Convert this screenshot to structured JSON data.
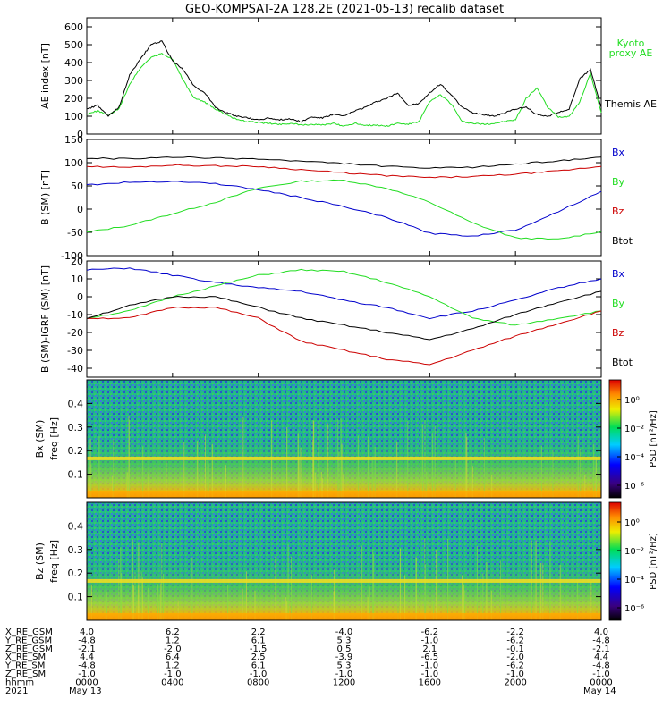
{
  "title": "GEO-KOMPSAT-2A 128.2E (2021-05-13) recalib dataset",
  "chart_data": [
    {
      "id": "ae",
      "type": "line",
      "ylabel": "AE index [nT]",
      "ylim": [
        0,
        650
      ],
      "yticks": [
        0,
        100,
        200,
        300,
        400,
        500,
        600
      ],
      "series": [
        {
          "name": "Kyoto proxy AE",
          "color": "#22dd22",
          "x": [
            0,
            0.5,
            1,
            1.5,
            2,
            2.5,
            3,
            3.5,
            4,
            4.5,
            5,
            5.5,
            6,
            6.5,
            7,
            7.5,
            8,
            8.5,
            9,
            9.5,
            10,
            10.5,
            11,
            11.5,
            12,
            12.5,
            13,
            13.5,
            14,
            14.5,
            15,
            15.5,
            16,
            16.5,
            17,
            17.5,
            18,
            18.5,
            19,
            19.5,
            20,
            20.5,
            21,
            21.5,
            22,
            22.5,
            23,
            23.5,
            24
          ],
          "values": [
            110,
            130,
            105,
            140,
            280,
            370,
            430,
            450,
            420,
            300,
            200,
            180,
            140,
            110,
            80,
            70,
            65,
            60,
            55,
            60,
            50,
            55,
            50,
            60,
            45,
            60,
            50,
            50,
            45,
            60,
            55,
            70,
            180,
            220,
            170,
            70,
            60,
            55,
            60,
            70,
            80,
            200,
            260,
            150,
            95,
            100,
            180,
            340,
            120
          ]
        },
        {
          "name": "Themis AE",
          "color": "#000000",
          "x": [
            0,
            0.5,
            1,
            1.5,
            2,
            2.5,
            3,
            3.5,
            4,
            4.5,
            5,
            5.5,
            6,
            6.5,
            7,
            7.5,
            8,
            8.5,
            9,
            9.5,
            10,
            10.5,
            11,
            11.5,
            12,
            12.5,
            13,
            13.5,
            14,
            14.5,
            15,
            15.5,
            16,
            16.5,
            17,
            17.5,
            18,
            18.5,
            19,
            19.5,
            20,
            20.5,
            21,
            21.5,
            22,
            22.5,
            23,
            23.5,
            24
          ],
          "values": [
            140,
            160,
            100,
            150,
            330,
            420,
            500,
            520,
            410,
            360,
            270,
            230,
            150,
            120,
            100,
            90,
            80,
            90,
            80,
            85,
            70,
            95,
            90,
            110,
            100,
            130,
            150,
            180,
            200,
            230,
            160,
            170,
            230,
            280,
            220,
            150,
            120,
            110,
            100,
            120,
            140,
            150,
            110,
            100,
            120,
            140,
            310,
            360,
            150
          ]
        }
      ]
    },
    {
      "id": "b",
      "type": "line",
      "ylabel": "B (SM) [nT]",
      "ylim": [
        -100,
        150
      ],
      "yticks": [
        -100,
        -50,
        0,
        50,
        100,
        150
      ],
      "series": [
        {
          "name": "Bx",
          "color": "#0000cc",
          "x": [
            0,
            2,
            4,
            6,
            8,
            10,
            12,
            14,
            16,
            18,
            20,
            22,
            24
          ],
          "values": [
            52,
            58,
            60,
            55,
            42,
            25,
            5,
            -18,
            -52,
            -58,
            -45,
            -5,
            38
          ]
        },
        {
          "name": "By",
          "color": "#22dd22",
          "x": [
            0,
            2,
            4,
            6,
            8,
            10,
            12,
            14,
            16,
            18,
            20,
            22,
            24
          ],
          "values": [
            -50,
            -35,
            -10,
            15,
            45,
            60,
            62,
            45,
            15,
            -30,
            -62,
            -65,
            -48
          ]
        },
        {
          "name": "Bz",
          "color": "#cc0000",
          "x": [
            0,
            2,
            4,
            6,
            8,
            10,
            12,
            14,
            16,
            18,
            20,
            22,
            24
          ],
          "values": [
            92,
            90,
            95,
            93,
            92,
            85,
            78,
            72,
            68,
            70,
            75,
            82,
            92
          ]
        },
        {
          "name": "Btot",
          "color": "#000000",
          "x": [
            0,
            2,
            4,
            6,
            8,
            10,
            12,
            14,
            16,
            18,
            20,
            22,
            24
          ],
          "values": [
            110,
            108,
            112,
            110,
            108,
            103,
            98,
            92,
            88,
            90,
            97,
            104,
            112
          ]
        }
      ]
    },
    {
      "id": "db",
      "type": "line",
      "ylabel": "B (SM)-IGRF (SM) [nT]",
      "ylim": [
        -45,
        20
      ],
      "yticks": [
        -40,
        -30,
        -20,
        -10,
        0,
        10,
        20
      ],
      "series": [
        {
          "name": "Bx",
          "color": "#0000cc",
          "x": [
            0,
            2,
            4,
            6,
            8,
            10,
            12,
            14,
            16,
            18,
            20,
            22,
            24
          ],
          "values": [
            15,
            16,
            12,
            8,
            5,
            3,
            -2,
            -6,
            -12,
            -8,
            -2,
            5,
            10
          ]
        },
        {
          "name": "By",
          "color": "#22dd22",
          "x": [
            0,
            2,
            4,
            6,
            8,
            10,
            12,
            14,
            16,
            18,
            20,
            22,
            24
          ],
          "values": [
            -12,
            -8,
            0,
            6,
            12,
            15,
            14,
            8,
            0,
            -12,
            -16,
            -12,
            -8
          ]
        },
        {
          "name": "Bz",
          "color": "#cc0000",
          "x": [
            0,
            2,
            4,
            6,
            8,
            10,
            12,
            14,
            16,
            18,
            20,
            22,
            24
          ],
          "values": [
            -12,
            -12,
            -6,
            -6,
            -12,
            -25,
            -30,
            -35,
            -38,
            -30,
            -22,
            -15,
            -8
          ]
        },
        {
          "name": "Btot",
          "color": "#000000",
          "x": [
            0,
            2,
            4,
            6,
            8,
            10,
            12,
            14,
            16,
            18,
            20,
            22,
            24
          ],
          "values": [
            -12,
            -5,
            0,
            0,
            -6,
            -12,
            -16,
            -20,
            -24,
            -18,
            -10,
            -3,
            3
          ]
        }
      ]
    },
    {
      "id": "spec-bx",
      "type": "heatmap",
      "ylabel": "Bx (SM) freq [Hz]",
      "ylim": [
        0,
        0.5
      ],
      "yticks": [
        0.1,
        0.2,
        0.3,
        0.4
      ],
      "colorbar_label": "PSD [nT²/Hz]",
      "colorbar_ticks": [
        "10⁰",
        "10⁻²",
        "10⁻⁴",
        "10⁻⁶"
      ],
      "band_hz": 0.167
    },
    {
      "id": "spec-bz",
      "type": "heatmap",
      "ylabel": "Bz (SM) freq [Hz]",
      "ylim": [
        0,
        0.5
      ],
      "yticks": [
        0.1,
        0.2,
        0.3,
        0.4
      ],
      "colorbar_label": "PSD [nT²/Hz]",
      "colorbar_ticks": [
        "10⁰",
        "10⁻²",
        "10⁻⁴",
        "10⁻⁶"
      ],
      "band_hz": 0.167
    }
  ],
  "legend": {
    "ae": [
      "Kyoto",
      "proxy AE",
      "Themis AE"
    ],
    "b": [
      "Bx",
      "By",
      "Bz",
      "Btot"
    ],
    "db": [
      "Bx",
      "By",
      "Bz",
      "Btot"
    ]
  },
  "footer": {
    "row_labels": [
      "X_RE_GSM",
      "Y_RE_GSM",
      "Z_RE_GSM",
      "X_RE_SM",
      "Y_RE_SM",
      "Z_RE_SM",
      "hhmm",
      "2021"
    ],
    "columns": [
      [
        "4.0",
        "-4.8",
        "-2.1",
        "4.4",
        "-4.8",
        "-1.0",
        "0000",
        "May 13"
      ],
      [
        "6.2",
        "1.2",
        "-2.0",
        "6.4",
        "1.2",
        "-1.0",
        "0400",
        ""
      ],
      [
        "2.2",
        "6.1",
        "-1.5",
        "2.5",
        "6.1",
        "-1.0",
        "0800",
        ""
      ],
      [
        "-4.0",
        "5.3",
        "0.5",
        "-3.9",
        "5.3",
        "-1.0",
        "1200",
        ""
      ],
      [
        "-6.2",
        "-1.0",
        "2.1",
        "-6.5",
        "-1.0",
        "-1.0",
        "1600",
        ""
      ],
      [
        "-2.2",
        "-6.2",
        "-0.1",
        "-2.0",
        "-6.2",
        "-1.0",
        "2000",
        ""
      ],
      [
        "4.0",
        "-4.8",
        "-2.1",
        "4.4",
        "-4.8",
        "-1.0",
        "0000",
        "May 14"
      ]
    ]
  }
}
